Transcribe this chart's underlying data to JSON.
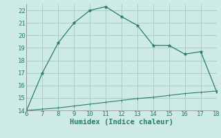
{
  "x_upper": [
    6,
    7,
    8,
    9,
    10,
    11,
    12,
    13,
    14,
    15,
    16,
    17,
    18
  ],
  "y_upper": [
    14.0,
    17.0,
    19.4,
    21.0,
    22.0,
    22.3,
    21.5,
    20.8,
    19.2,
    19.2,
    18.5,
    18.7,
    15.5
  ],
  "x_lower": [
    6,
    7,
    8,
    9,
    10,
    11,
    12,
    13,
    14,
    15,
    16,
    17,
    18
  ],
  "y_lower": [
    14.0,
    14.1,
    14.2,
    14.35,
    14.5,
    14.65,
    14.8,
    14.95,
    15.05,
    15.2,
    15.35,
    15.45,
    15.55
  ],
  "line_color": "#2a7a70",
  "bg_color": "#ceeae4",
  "grid_color": "#aacccc",
  "xlabel": "Humidex (Indice chaleur)",
  "xlim": [
    6,
    18
  ],
  "ylim": [
    14,
    22.5
  ],
  "xticks": [
    6,
    7,
    8,
    9,
    10,
    11,
    12,
    13,
    14,
    15,
    16,
    17,
    18
  ],
  "yticks": [
    14,
    15,
    16,
    17,
    18,
    19,
    20,
    21,
    22
  ],
  "xlabel_fontsize": 7.5,
  "tick_fontsize": 6.5
}
